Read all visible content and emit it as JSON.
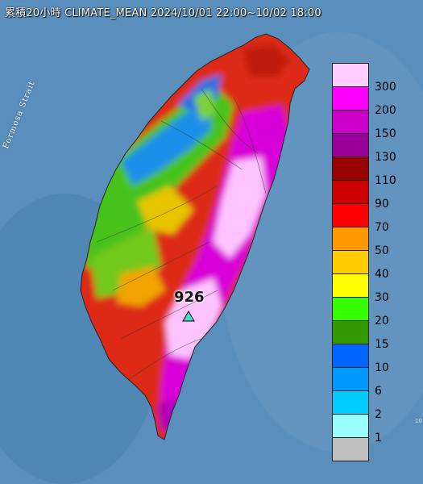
{
  "header": {
    "title": "累積20小時 CLIMATE_MEAN 2024/10/01 22:00~10/02 18:00"
  },
  "map": {
    "strait_label": "Formosa Strait",
    "peak_value": "926",
    "peak_marker_icon": "triangle-marker-icon",
    "sea_color": "#4d86b3",
    "edge_note": "10"
  },
  "legend": {
    "levels": [
      {
        "label": "300",
        "color": "#ffcdff"
      },
      {
        "label": "200",
        "color": "#ff00ff"
      },
      {
        "label": "150",
        "color": "#cc00cc"
      },
      {
        "label": "130",
        "color": "#990099"
      },
      {
        "label": "110",
        "color": "#990000"
      },
      {
        "label": "90",
        "color": "#cc0000"
      },
      {
        "label": "70",
        "color": "#ff0000"
      },
      {
        "label": "50",
        "color": "#ff9900"
      },
      {
        "label": "40",
        "color": "#ffcc00"
      },
      {
        "label": "30",
        "color": "#ffff00"
      },
      {
        "label": "20",
        "color": "#33ff00"
      },
      {
        "label": "15",
        "color": "#339900"
      },
      {
        "label": "10",
        "color": "#0066ff"
      },
      {
        "label": "6",
        "color": "#0099ff"
      },
      {
        "label": "2",
        "color": "#00ccff"
      },
      {
        "label": "1",
        "color": "#99ffff"
      },
      {
        "label": "",
        "color": "#c0c0c0"
      }
    ]
  }
}
